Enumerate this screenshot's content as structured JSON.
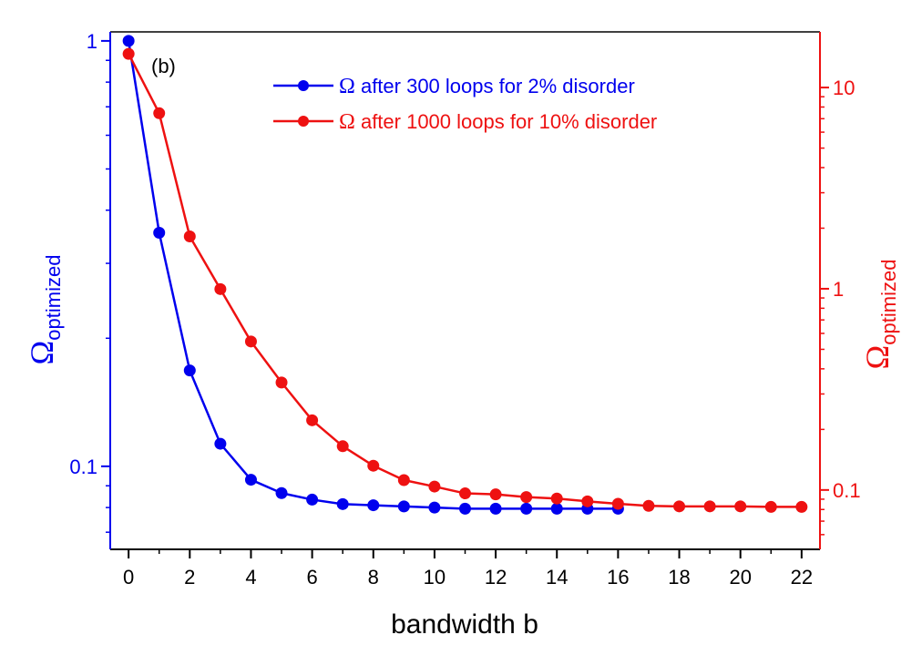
{
  "chart_data": {
    "type": "line",
    "annotation": "(b)",
    "xlabel": "bandwidth b",
    "xlim": [
      -0.6,
      22.6
    ],
    "xticks": [
      0,
      2,
      4,
      6,
      8,
      10,
      12,
      14,
      16,
      18,
      20,
      22
    ],
    "xtick_labels": [
      "0",
      "2",
      "4",
      "6",
      "8",
      "10",
      "12",
      "14",
      "16",
      "18",
      "20",
      "22"
    ],
    "left_axis": {
      "scale": "log",
      "ylim": [
        0.0638,
        1.05
      ],
      "label_symbol": "Ω",
      "label_subscript": "optimized",
      "color": "#0000ee",
      "major_ticks": [
        0.1,
        1
      ],
      "major_tick_labels": [
        "0.1",
        "1"
      ]
    },
    "right_axis": {
      "scale": "log",
      "ylim": [
        0.0507,
        18.9
      ],
      "label_symbol": "Ω",
      "label_subscript": "optimized",
      "color": "#ee1111",
      "major_ticks": [
        0.1,
        1,
        10
      ],
      "major_tick_labels": [
        "0.1",
        "1",
        "10"
      ]
    },
    "series": [
      {
        "name": "Ω after 300 loops for 2% disorder",
        "legend_symbol": "Ω",
        "legend_rest": " after 300 loops for 2% disorder",
        "axis": "left",
        "color": "#0000ee",
        "x": [
          0,
          1,
          2,
          3,
          4,
          5,
          6,
          7,
          8,
          9,
          10,
          11,
          12,
          13,
          14,
          15,
          16
        ],
        "values": [
          1.0,
          0.354,
          0.168,
          0.113,
          0.093,
          0.0865,
          0.0835,
          0.0815,
          0.081,
          0.0805,
          0.08,
          0.0795,
          0.0795,
          0.0795,
          0.0795,
          0.0795,
          0.0795
        ]
      },
      {
        "name": "Ω after 1000 loops for 10% disorder",
        "legend_symbol": "Ω",
        "legend_rest": " after 1000 loops for 10% disorder",
        "axis": "right",
        "color": "#ee1111",
        "x": [
          0,
          1,
          2,
          3,
          4,
          5,
          6,
          7,
          8,
          9,
          10,
          11,
          12,
          13,
          14,
          15,
          16,
          17,
          18,
          19,
          20,
          21,
          22
        ],
        "values": [
          14.7,
          7.45,
          1.82,
          0.996,
          0.547,
          0.342,
          0.222,
          0.165,
          0.132,
          0.112,
          0.104,
          0.0962,
          0.0951,
          0.0922,
          0.0907,
          0.0878,
          0.0854,
          0.0834,
          0.0829,
          0.0829,
          0.0829,
          0.0824,
          0.0824
        ]
      }
    ]
  }
}
